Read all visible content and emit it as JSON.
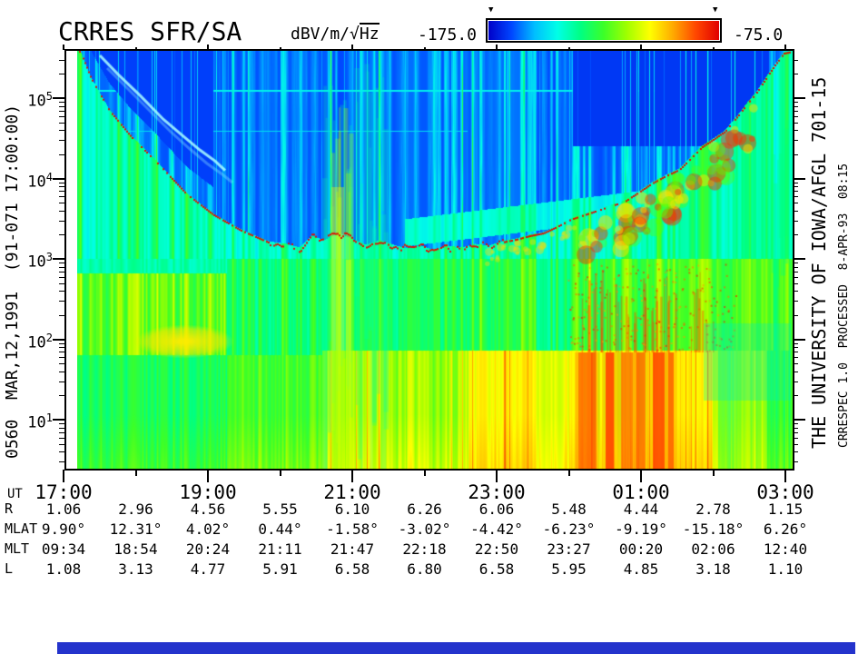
{
  "header": {
    "title": "CRRES SFR/SA",
    "units_prefix": "dBV/m/√",
    "units_radicand": "Hz",
    "scale_min": "-175.0",
    "scale_max": "-75.0",
    "marker_glyph": "▼",
    "colorbar_colors": [
      "#0000c8",
      "#0046ff",
      "#00beff",
      "#00ffe6",
      "#00ff82",
      "#3cff28",
      "#a0ff00",
      "#ffff00",
      "#ffaa00",
      "#ff4600",
      "#e10000"
    ]
  },
  "side_labels": {
    "left": "0560  MAR,12,1991  (91-071 17:00:00)",
    "right_line1": "THE UNIVERSITY OF IOWA/AFGL 701-15",
    "right_line2": "CRRESPEC 1.0  PROCESSED  8-APR-93  08:15"
  },
  "chart_data": {
    "type": "heatmap",
    "title": "CRRES SFR/SA",
    "colorbar": {
      "units": "dBV/m/√Hz",
      "min": -175.0,
      "max": -75.0,
      "style": "rainbow (blue→cyan→green→yellow→red)"
    },
    "x_axis": {
      "label": "UT",
      "tick_labels": [
        "17:00",
        "19:00",
        "21:00",
        "23:00",
        "01:00",
        "03:00"
      ],
      "minor_tick_interval": "1 hour"
    },
    "y_axis": {
      "scale": "log",
      "tick_exponents": [
        5,
        4,
        3,
        2,
        1
      ],
      "tick_labels": [
        "10⁵",
        "10⁴",
        "10³",
        "10²",
        "10¹"
      ]
    },
    "overlay": {
      "red_dotted_curve": "descends from top-left (~4e5 at 17:00) to ~2.5e3 near 21:30-23:00, rises back to top by ~02:40"
    },
    "ephemeris_table": {
      "ut_row": {
        "label": "UT",
        "values": [
          "17:00",
          "19:00",
          "21:00",
          "23:00",
          "01:00",
          "03:00"
        ]
      },
      "rows": [
        {
          "label": "R",
          "values": [
            "1.06",
            "2.96",
            "4.56",
            "5.55",
            "6.10",
            "6.26",
            "6.06",
            "5.48",
            "4.44",
            "2.78",
            "1.15"
          ]
        },
        {
          "label": "MLAT",
          "values": [
            "9.90°",
            "12.31°",
            "4.02°",
            "0.44°",
            "-1.58°",
            "-3.02°",
            "-4.42°",
            "-6.23°",
            "-9.19°",
            "-15.18°",
            "6.26°"
          ]
        },
        {
          "label": "MLT",
          "values": [
            "09:34",
            "18:54",
            "20:24",
            "21:11",
            "21:47",
            "22:18",
            "22:50",
            "23:27",
            "00:20",
            "02:06",
            "12:40"
          ]
        },
        {
          "label": "L",
          "values": [
            "1.08",
            "3.13",
            "4.77",
            "5.91",
            "6.58",
            "6.80",
            "6.58",
            "5.95",
            "4.85",
            "3.18",
            "1.10"
          ]
        }
      ]
    }
  },
  "footer_strip_color": "#2433cc"
}
